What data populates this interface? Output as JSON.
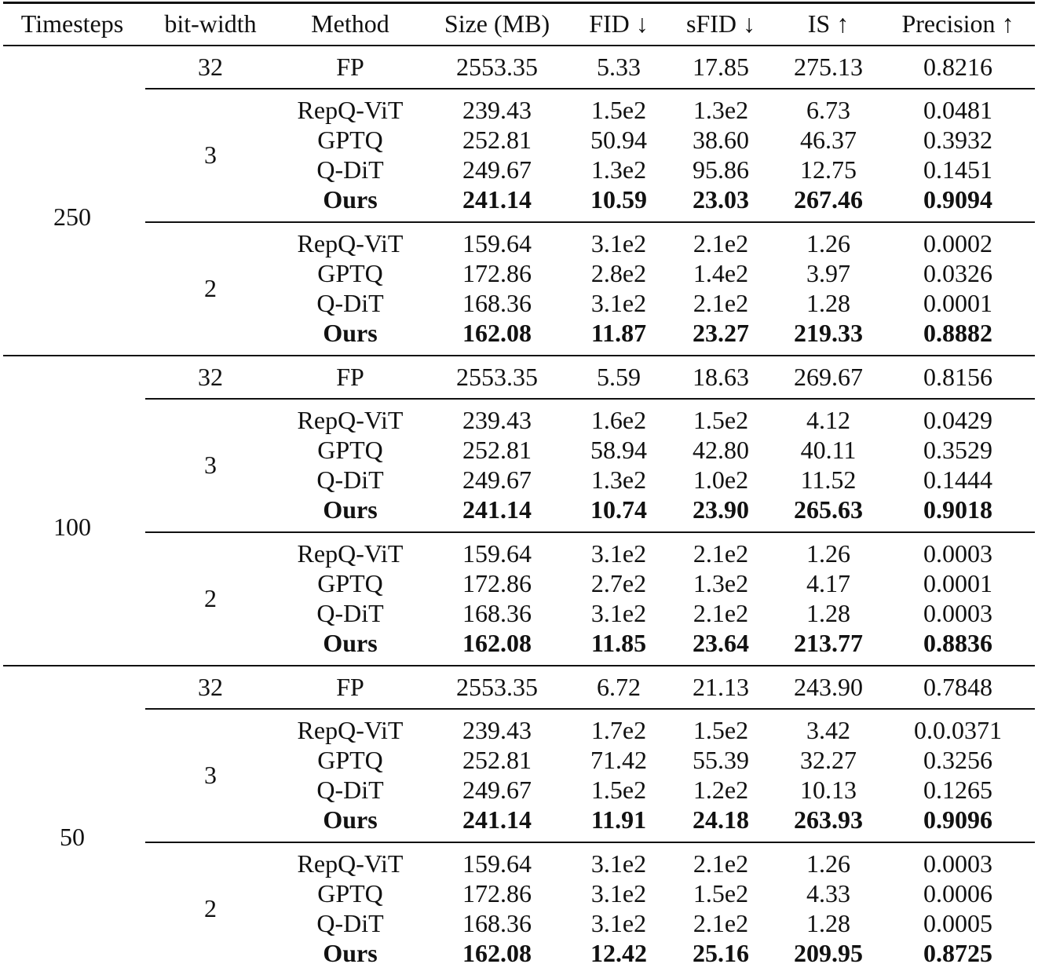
{
  "table": {
    "headers": [
      "Timesteps",
      "bit-width",
      "Method",
      "Size (MB)",
      "FID ↓",
      "sFID ↓",
      "IS ↑",
      "Precision ↑"
    ],
    "blocks": [
      {
        "timesteps": "250",
        "groups": [
          {
            "bits": "32",
            "rows": [
              [
                "FP",
                "2553.35",
                "5.33",
                "17.85",
                "275.13",
                "0.8216"
              ]
            ]
          },
          {
            "bits": "3",
            "rows": [
              [
                "RepQ-ViT",
                "239.43",
                "1.5e2",
                "1.3e2",
                "6.73",
                "0.0481"
              ],
              [
                "GPTQ",
                "252.81",
                "50.94",
                "38.60",
                "46.37",
                "0.3932"
              ],
              [
                "Q-DiT",
                "249.67",
                "1.3e2",
                "95.86",
                "12.75",
                "0.1451"
              ],
              [
                "Ours",
                "241.14",
                "10.59",
                "23.03",
                "267.46",
                "0.9094"
              ]
            ]
          },
          {
            "bits": "2",
            "rows": [
              [
                "RepQ-ViT",
                "159.64",
                "3.1e2",
                "2.1e2",
                "1.26",
                "0.0002"
              ],
              [
                "GPTQ",
                "172.86",
                "2.8e2",
                "1.4e2",
                "3.97",
                "0.0326"
              ],
              [
                "Q-DiT",
                "168.36",
                "3.1e2",
                "2.1e2",
                "1.28",
                "0.0001"
              ],
              [
                "Ours",
                "162.08",
                "11.87",
                "23.27",
                "219.33",
                "0.8882"
              ]
            ]
          }
        ]
      },
      {
        "timesteps": "100",
        "groups": [
          {
            "bits": "32",
            "rows": [
              [
                "FP",
                "2553.35",
                "5.59",
                "18.63",
                "269.67",
                "0.8156"
              ]
            ]
          },
          {
            "bits": "3",
            "rows": [
              [
                "RepQ-ViT",
                "239.43",
                "1.6e2",
                "1.5e2",
                "4.12",
                "0.0429"
              ],
              [
                "GPTQ",
                "252.81",
                "58.94",
                "42.80",
                "40.11",
                "0.3529"
              ],
              [
                "Q-DiT",
                "249.67",
                "1.3e2",
                "1.0e2",
                "11.52",
                "0.1444"
              ],
              [
                "Ours",
                "241.14",
                "10.74",
                "23.90",
                "265.63",
                "0.9018"
              ]
            ]
          },
          {
            "bits": "2",
            "rows": [
              [
                "RepQ-ViT",
                "159.64",
                "3.1e2",
                "2.1e2",
                "1.26",
                "0.0003"
              ],
              [
                "GPTQ",
                "172.86",
                "2.7e2",
                "1.3e2",
                "4.17",
                "0.0001"
              ],
              [
                "Q-DiT",
                "168.36",
                "3.1e2",
                "2.1e2",
                "1.28",
                "0.0003"
              ],
              [
                "Ours",
                "162.08",
                "11.85",
                "23.64",
                "213.77",
                "0.8836"
              ]
            ]
          }
        ]
      },
      {
        "timesteps": "50",
        "groups": [
          {
            "bits": "32",
            "rows": [
              [
                "FP",
                "2553.35",
                "6.72",
                "21.13",
                "243.90",
                "0.7848"
              ]
            ]
          },
          {
            "bits": "3",
            "rows": [
              [
                "RepQ-ViT",
                "239.43",
                "1.7e2",
                "1.5e2",
                "3.42",
                "0.0.0371"
              ],
              [
                "GPTQ",
                "252.81",
                "71.42",
                "55.39",
                "32.27",
                "0.3256"
              ],
              [
                "Q-DiT",
                "249.67",
                "1.5e2",
                "1.2e2",
                "10.13",
                "0.1265"
              ],
              [
                "Ours",
                "241.14",
                "11.91",
                "24.18",
                "263.93",
                "0.9096"
              ]
            ]
          },
          {
            "bits": "2",
            "rows": [
              [
                "RepQ-ViT",
                "159.64",
                "3.1e2",
                "2.1e2",
                "1.26",
                "0.0003"
              ],
              [
                "GPTQ",
                "172.86",
                "3.1e2",
                "1.5e2",
                "4.33",
                "0.0006"
              ],
              [
                "Q-DiT",
                "168.36",
                "3.1e2",
                "2.1e2",
                "1.28",
                "0.0005"
              ],
              [
                "Ours",
                "162.08",
                "12.42",
                "25.16",
                "209.95",
                "0.8725"
              ]
            ]
          }
        ]
      }
    ]
  }
}
